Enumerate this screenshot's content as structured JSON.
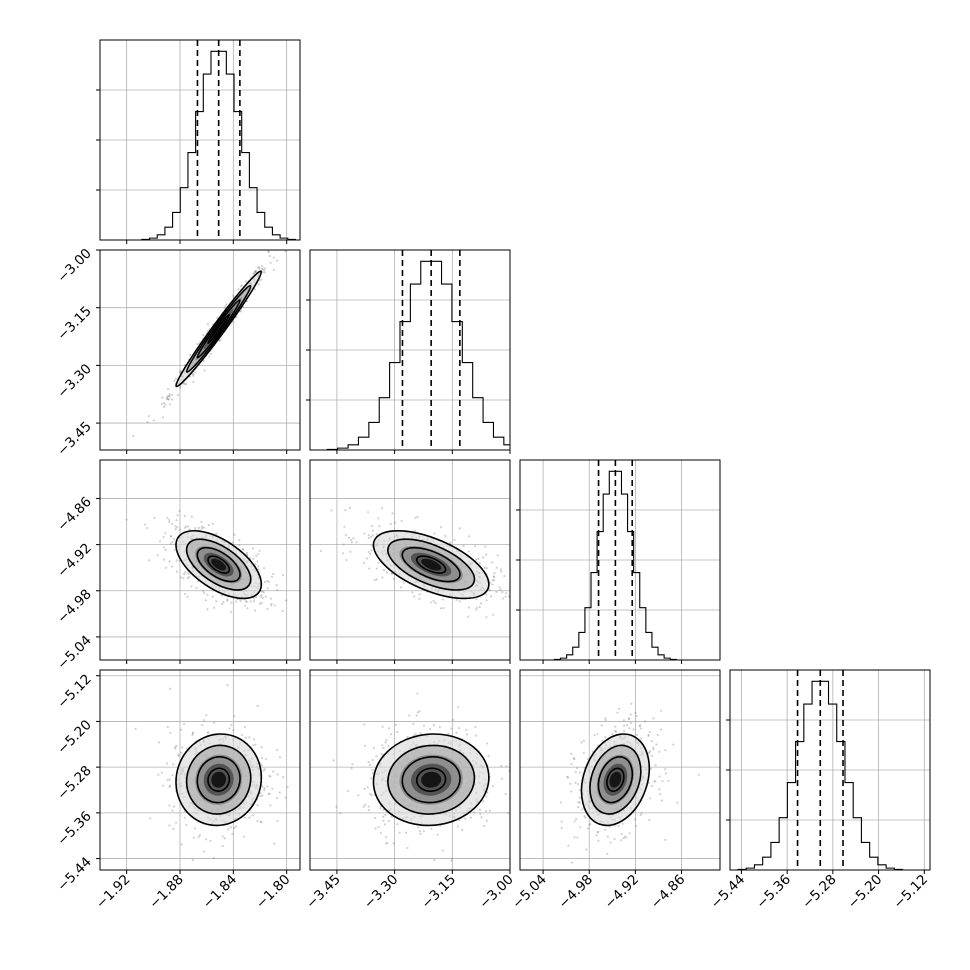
{
  "chart_data": {
    "type": "corner",
    "grid": true,
    "quantiles": [
      0.16,
      0.5,
      0.84
    ],
    "parameters": [
      {
        "mean": -1.851,
        "sd": 0.016,
        "range": [
          -1.94,
          -1.79
        ],
        "ticks": [
          -1.92,
          -1.88,
          -1.84,
          -1.8
        ],
        "tick_labels": [
          "−1.92",
          "−1.88",
          "−1.84",
          "−1.80"
        ]
      },
      {
        "mean": -3.205,
        "sd": 0.075,
        "range": [
          -3.52,
          -3.0
        ],
        "ticks": [
          -3.45,
          -3.3,
          -3.15,
          -3.0
        ],
        "tick_labels": [
          "−3.45",
          "−3.30",
          "−3.15",
          "−3.00"
        ]
      },
      {
        "mean": -4.946,
        "sd": 0.022,
        "range": [
          -5.07,
          -4.81
        ],
        "ticks": [
          -5.04,
          -4.98,
          -4.92,
          -4.86
        ],
        "tick_labels": [
          "−5.04",
          "−4.98",
          "−4.92",
          "−4.86"
        ]
      },
      {
        "mean": -5.302,
        "sd": 0.04,
        "range": [
          -5.46,
          -5.11
        ],
        "ticks": [
          -5.44,
          -5.36,
          -5.28,
          -5.2,
          -5.12
        ],
        "tick_labels": [
          "−5.44",
          "−5.36",
          "−5.28",
          "−5.20",
          "−5.12"
        ]
      }
    ],
    "correlations": [
      [
        1,
        0.985,
        -0.58,
        0.05
      ],
      [
        0.985,
        1,
        -0.58,
        0.05
      ],
      [
        -0.58,
        -0.58,
        1,
        0.25
      ],
      [
        0.05,
        0.05,
        0.25,
        1
      ]
    ],
    "histogram_bins": 20,
    "contour_levels": [
      0.5,
      1.0,
      1.5,
      2.0
    ],
    "scatter_points_per_panel": 600
  }
}
